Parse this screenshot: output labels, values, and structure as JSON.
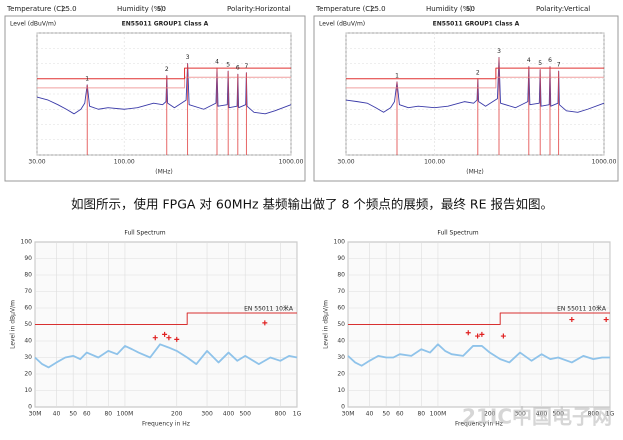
{
  "chart_data": [
    {
      "type": "line",
      "title": "EN55011 GROUP1 Class A",
      "header": [
        {
          "label": "Temperature (C):",
          "value": "25.0"
        },
        {
          "label": "Humidity (%):",
          "value": "50"
        },
        {
          "label": "Polarity:",
          "value": "Horizontal"
        }
      ],
      "y_label": "Level (dBuV/m)",
      "x_label": "(MHz)",
      "x_scale": "log",
      "xlim": [
        30,
        1000
      ],
      "xticks": [
        {
          "value": 30,
          "label": "30.00"
        },
        {
          "value": 100,
          "label": "100.00"
        },
        {
          "value": 1000,
          "label": "1000.00"
        }
      ],
      "ylim": [
        0,
        80
      ],
      "yticks": [
        0,
        10,
        20,
        30,
        40,
        50,
        60,
        70,
        80
      ],
      "ytick_labels": false,
      "grid": true,
      "series": [
        {
          "color": "#3a3aa8",
          "x": [
            30,
            35,
            40,
            45,
            50,
            55,
            58,
            60,
            62,
            70,
            80,
            100,
            120,
            150,
            170,
            178,
            180,
            182,
            200,
            235,
            240,
            245,
            300,
            355,
            360,
            365,
            415,
            420,
            425,
            475,
            480,
            485,
            535,
            540,
            545,
            600,
            700,
            800,
            1000
          ],
          "values": [
            38,
            36,
            33,
            30,
            27,
            30,
            34,
            46,
            32,
            30,
            31,
            30,
            31,
            34,
            33,
            35,
            52,
            34,
            31,
            36,
            60,
            33,
            30,
            34,
            57,
            32,
            33,
            55,
            31,
            32,
            53,
            31,
            33,
            54,
            32,
            28,
            27,
            29,
            33
          ]
        },
        {
          "color": "#f0a0a0",
          "x": [
            30,
            230,
            230,
            1000
          ],
          "values": [
            44,
            44,
            51,
            51
          ]
        },
        {
          "color": "#e03030",
          "x": [
            30,
            230,
            230,
            1000
          ],
          "values": [
            50,
            50,
            57,
            57
          ]
        }
      ],
      "markers": {
        "style": "stem",
        "color": "#e04040",
        "x": [
          60,
          180,
          240,
          360,
          420,
          480,
          540
        ],
        "values": [
          46,
          52,
          60,
          57,
          55,
          53,
          54
        ],
        "labels": [
          "1",
          "2",
          "3",
          "4",
          "5",
          "6",
          "7"
        ]
      }
    },
    {
      "type": "line",
      "title": "EN55011 GROUP1 Class A",
      "header": [
        {
          "label": "Temperature (C):",
          "value": "25.0"
        },
        {
          "label": "Humidity (%):",
          "value": "50"
        },
        {
          "label": "Polarity:",
          "value": "Vertical"
        }
      ],
      "y_label": "Level (dBuV/m)",
      "x_label": "(MHz)",
      "x_scale": "log",
      "xlim": [
        30,
        1000
      ],
      "xticks": [
        {
          "value": 30,
          "label": "30.00"
        },
        {
          "value": 100,
          "label": "100.00"
        },
        {
          "value": 1000,
          "label": "1000.00"
        }
      ],
      "ylim": [
        0,
        80
      ],
      "yticks": [
        0,
        10,
        20,
        30,
        40,
        50,
        60,
        70,
        80
      ],
      "ytick_labels": false,
      "grid": true,
      "series": [
        {
          "color": "#3a3aa8",
          "x": [
            30,
            35,
            40,
            45,
            50,
            55,
            58,
            60,
            62,
            70,
            80,
            100,
            120,
            150,
            170,
            178,
            180,
            182,
            200,
            235,
            240,
            245,
            300,
            355,
            360,
            365,
            415,
            420,
            425,
            475,
            480,
            485,
            535,
            540,
            545,
            600,
            700,
            800,
            1000
          ],
          "values": [
            36,
            35,
            34,
            31,
            28,
            31,
            35,
            48,
            33,
            31,
            32,
            31,
            32,
            35,
            34,
            36,
            50,
            35,
            32,
            37,
            64,
            34,
            31,
            35,
            58,
            33,
            34,
            56,
            32,
            33,
            58,
            32,
            34,
            55,
            33,
            29,
            28,
            30,
            34
          ]
        },
        {
          "color": "#f0a0a0",
          "x": [
            30,
            230,
            230,
            1000
          ],
          "values": [
            44,
            44,
            51,
            51
          ]
        },
        {
          "color": "#e03030",
          "x": [
            30,
            230,
            230,
            1000
          ],
          "values": [
            50,
            50,
            57,
            57
          ]
        }
      ],
      "markers": {
        "style": "stem",
        "color": "#e04040",
        "x": [
          60,
          180,
          240,
          360,
          420,
          480,
          540
        ],
        "values": [
          48,
          50,
          64,
          58,
          56,
          58,
          55
        ],
        "labels": [
          "1",
          "2",
          "3",
          "4",
          "5",
          "6",
          "7"
        ]
      }
    },
    {
      "type": "line",
      "title": "Full Spectrum",
      "y_label": "Level in dBµV/m",
      "x_label": "Frequency in Hz",
      "x_scale": "log",
      "xlim": [
        30000000,
        1000000000
      ],
      "xticks": [
        {
          "value": 30000000,
          "label": "30M"
        },
        {
          "value": 40000000,
          "label": "40"
        },
        {
          "value": 50000000,
          "label": "50"
        },
        {
          "value": 60000000,
          "label": "60"
        },
        {
          "value": 80000000,
          "label": "80"
        },
        {
          "value": 100000000,
          "label": "100M"
        },
        {
          "value": 200000000,
          "label": "200"
        },
        {
          "value": 300000000,
          "label": "300"
        },
        {
          "value": 400000000,
          "label": "400"
        },
        {
          "value": 500000000,
          "label": "500"
        },
        {
          "value": 800000000,
          "label": "800"
        },
        {
          "value": 1000000000,
          "label": "1G"
        }
      ],
      "ylim": [
        0,
        100
      ],
      "yticks": [
        0,
        10,
        20,
        30,
        40,
        50,
        60,
        70,
        80,
        90,
        100
      ],
      "ytick_labels": true,
      "grid": true,
      "series": [
        {
          "color": "#8fc3ea",
          "x": [
            30000000,
            33000000,
            36000000,
            40000000,
            45000000,
            50000000,
            55000000,
            60000000,
            70000000,
            80000000,
            90000000,
            100000000,
            110000000,
            120000000,
            140000000,
            160000000,
            180000000,
            200000000,
            230000000,
            260000000,
            300000000,
            350000000,
            400000000,
            450000000,
            500000000,
            600000000,
            700000000,
            800000000,
            900000000,
            1000000000
          ],
          "values": [
            30,
            26,
            24,
            27,
            30,
            31,
            29,
            33,
            30,
            34,
            32,
            37,
            35,
            33,
            30,
            38,
            36,
            34,
            30,
            26,
            34,
            27,
            33,
            28,
            31,
            26,
            30,
            28,
            31,
            30
          ]
        },
        {
          "name": "EN 55011 10米A",
          "color": "#d83030",
          "x": [
            30000000,
            230000000,
            230000000,
            1000000000
          ],
          "values": [
            50,
            50,
            57,
            57
          ]
        }
      ],
      "markers": {
        "style": "cross",
        "color": "#e02020",
        "x": [
          150000000,
          170000000,
          180000000,
          200000000,
          650000000
        ],
        "values": [
          42,
          44,
          42,
          41,
          51
        ]
      }
    },
    {
      "type": "line",
      "title": "Full Spectrum",
      "y_label": "Level in dBµV/m",
      "x_label": "Frequency in Hz",
      "x_scale": "log",
      "xlim": [
        30000000,
        1000000000
      ],
      "xticks": [
        {
          "value": 30000000,
          "label": "30M"
        },
        {
          "value": 40000000,
          "label": "40"
        },
        {
          "value": 50000000,
          "label": "50"
        },
        {
          "value": 60000000,
          "label": "60"
        },
        {
          "value": 80000000,
          "label": "80"
        },
        {
          "value": 100000000,
          "label": "100M"
        },
        {
          "value": 200000000,
          "label": "200"
        },
        {
          "value": 300000000,
          "label": "300"
        },
        {
          "value": 400000000,
          "label": "400"
        },
        {
          "value": 500000000,
          "label": "500"
        },
        {
          "value": 800000000,
          "label": "800"
        },
        {
          "value": 1000000000,
          "label": "1G"
        }
      ],
      "ylim": [
        0,
        100
      ],
      "yticks": [
        0,
        10,
        20,
        30,
        40,
        50,
        60,
        70,
        80,
        90,
        100
      ],
      "ytick_labels": true,
      "grid": true,
      "series": [
        {
          "color": "#8fc3ea",
          "x": [
            30000000,
            33000000,
            36000000,
            40000000,
            45000000,
            50000000,
            55000000,
            60000000,
            70000000,
            80000000,
            90000000,
            100000000,
            110000000,
            120000000,
            140000000,
            160000000,
            180000000,
            200000000,
            230000000,
            260000000,
            300000000,
            350000000,
            400000000,
            450000000,
            500000000,
            600000000,
            700000000,
            800000000,
            900000000,
            1000000000
          ],
          "values": [
            31,
            27,
            25,
            28,
            31,
            30,
            30,
            32,
            31,
            35,
            33,
            38,
            34,
            32,
            31,
            37,
            37,
            33,
            29,
            27,
            33,
            28,
            32,
            29,
            30,
            27,
            31,
            29,
            30,
            30
          ]
        },
        {
          "name": "EN 55011 10米A",
          "color": "#d83030",
          "x": [
            30000000,
            230000000,
            230000000,
            1000000000
          ],
          "values": [
            50,
            50,
            57,
            57
          ]
        }
      ],
      "markers": {
        "style": "cross",
        "color": "#e02020",
        "x": [
          150000000,
          170000000,
          180000000,
          240000000,
          600000000,
          950000000
        ],
        "values": [
          45,
          43,
          44,
          43,
          53,
          53
        ]
      }
    }
  ],
  "caption": "如图所示，使用 FPGA 对 60MHz 基频输出做了 8 个频点的展频，最终 RE 报告如图。",
  "watermark": "21IC中国电子网"
}
